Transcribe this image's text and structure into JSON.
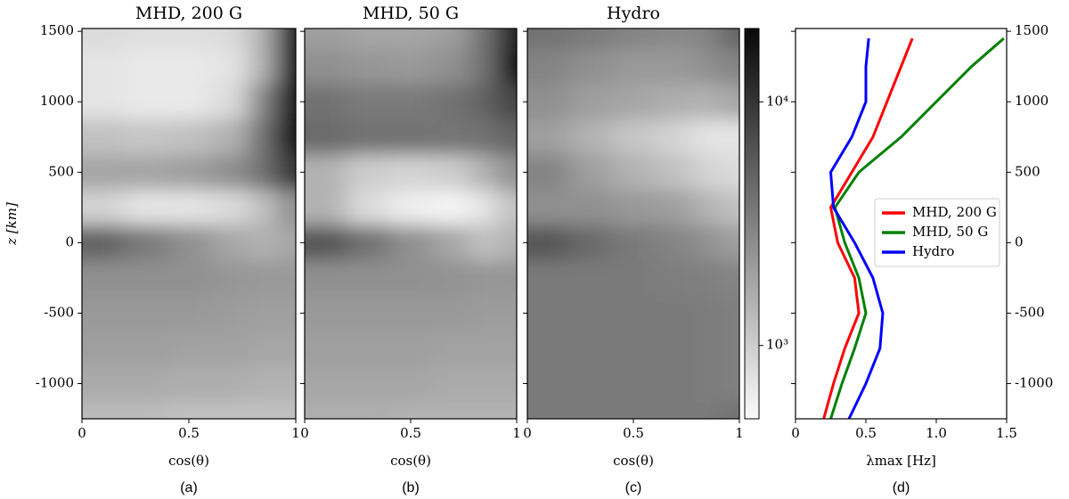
{
  "chart_data": [
    {
      "type": "heatmap",
      "title": "MHD,  200 G",
      "caption": "(a)",
      "xlabel": "cos(θ)",
      "ylabel": "z [km]",
      "xlim": [
        0,
        1
      ],
      "xticks": [
        0,
        0.5,
        1
      ],
      "ylim": [
        -1250,
        1520
      ],
      "yticks": [
        -1000,
        -500,
        0,
        500,
        1000,
        1500
      ],
      "x": [
        0.1,
        0.3,
        0.5,
        0.7,
        0.85,
        0.97
      ],
      "y": [
        1500,
        1250,
        1000,
        750,
        500,
        250,
        0,
        -250,
        -500,
        -750,
        -1000,
        -1250
      ],
      "values": [
        [
          800,
          750,
          750,
          800,
          1500,
          20000
        ],
        [
          700,
          650,
          650,
          700,
          1500,
          18000
        ],
        [
          700,
          650,
          650,
          800,
          3000,
          20000
        ],
        [
          1200,
          1100,
          1200,
          1500,
          4000,
          20000
        ],
        [
          1800,
          1800,
          2000,
          2500,
          4000,
          10000
        ],
        [
          900,
          700,
          700,
          800,
          1200,
          2500
        ],
        [
          5000,
          3500,
          2500,
          1800,
          1500,
          1800
        ],
        [
          2500,
          2500,
          2500,
          2300,
          2200,
          2200
        ],
        [
          2200,
          2200,
          2200,
          2100,
          2000,
          2000
        ],
        [
          2000,
          2000,
          1900,
          1900,
          1800,
          1800
        ],
        [
          1700,
          1700,
          1600,
          1600,
          1500,
          1500
        ],
        [
          1300,
          1300,
          1200,
          1200,
          1200,
          1200
        ]
      ]
    },
    {
      "type": "heatmap",
      "title": "MHD,  50 G",
      "caption": "(b)",
      "xlabel": "cos(θ)",
      "xlim": [
        0,
        1
      ],
      "xticks": [
        0,
        0.5,
        1
      ],
      "ylim": [
        -1250,
        1520
      ],
      "yticks": [
        -1000,
        -500,
        0,
        500,
        1000,
        1500
      ],
      "x": [
        0.1,
        0.3,
        0.5,
        0.7,
        0.85,
        0.97
      ],
      "y": [
        1500,
        1250,
        1000,
        750,
        500,
        250,
        0,
        -250,
        -500,
        -750,
        -1000,
        -1250
      ],
      "values": [
        [
          2000,
          1800,
          1800,
          2000,
          4000,
          15000
        ],
        [
          2500,
          2300,
          2200,
          2500,
          4000,
          18000
        ],
        [
          4000,
          3500,
          3500,
          4000,
          5000,
          8000
        ],
        [
          4500,
          4000,
          4000,
          3800,
          4000,
          5000
        ],
        [
          1500,
          1000,
          900,
          1000,
          1500,
          2500
        ],
        [
          1500,
          800,
          600,
          550,
          700,
          1200
        ],
        [
          6000,
          4000,
          2500,
          1800,
          1200,
          1500
        ],
        [
          2500,
          2500,
          2500,
          2400,
          2300,
          2300
        ],
        [
          2200,
          2200,
          2200,
          2200,
          2100,
          2100
        ],
        [
          2000,
          2000,
          2000,
          1900,
          1900,
          1900
        ],
        [
          1800,
          1800,
          1800,
          1700,
          1700,
          1700
        ],
        [
          1600,
          1600,
          1500,
          1500,
          1500,
          1500
        ]
      ]
    },
    {
      "type": "heatmap",
      "title": "Hydro",
      "caption": "(c)",
      "xlabel": "cos(θ)",
      "xlim": [
        0,
        1
      ],
      "xticks": [
        0,
        0.5,
        1
      ],
      "ylim": [
        -1250,
        1520
      ],
      "yticks": [
        -1000,
        -500,
        0,
        500,
        1000,
        1500
      ],
      "x": [
        0.1,
        0.3,
        0.5,
        0.7,
        0.85,
        0.97
      ],
      "y": [
        1500,
        1250,
        1000,
        750,
        500,
        250,
        0,
        -250,
        -500,
        -750,
        -1000,
        -1250
      ],
      "values": [
        [
          4000,
          3500,
          3000,
          2800,
          3000,
          5000
        ],
        [
          3000,
          2500,
          2200,
          2200,
          2500,
          3000
        ],
        [
          2500,
          2000,
          1800,
          1600,
          1500,
          1800
        ],
        [
          2000,
          1500,
          1100,
          900,
          700,
          700
        ],
        [
          3000,
          2000,
          1500,
          1200,
          900,
          800
        ],
        [
          2500,
          2500,
          2200,
          2000,
          1500,
          1200
        ],
        [
          6000,
          4500,
          3500,
          3000,
          2500,
          2000
        ],
        [
          3500,
          3500,
          3500,
          3300,
          3200,
          3000
        ],
        [
          3500,
          3500,
          3500,
          3500,
          3400,
          3200
        ],
        [
          3500,
          3500,
          3500,
          3500,
          3400,
          3200
        ],
        [
          3500,
          3500,
          3500,
          3500,
          3400,
          3200
        ],
        [
          3500,
          3500,
          3500,
          3500,
          3400,
          4000
        ]
      ]
    },
    {
      "type": "colorbar",
      "clim": [
        500,
        20000
      ],
      "log_scale": true,
      "cticks": [
        {
          "value": 1000,
          "label": "10³"
        },
        {
          "value": 10000,
          "label": "10⁴"
        }
      ]
    },
    {
      "type": "line",
      "caption": "(d)",
      "xlabel": "λmax [Hz]",
      "y_axis_side": "right",
      "legend": "right",
      "xlim": [
        0,
        1.5
      ],
      "xticks": [
        0,
        0.5,
        {
          "value": 1.0,
          "label": "1.0"
        },
        1.5
      ],
      "ylim": [
        -1250,
        1520
      ],
      "yticks": [
        -1000,
        -500,
        0,
        500,
        1000,
        1500
      ],
      "y": [
        -1250,
        -1000,
        -750,
        -500,
        -250,
        0,
        250,
        500,
        750,
        1000,
        1250,
        1450
      ],
      "series": [
        {
          "name": "MHD,  200 G",
          "color": "#ff0000",
          "values": [
            0.2,
            0.27,
            0.35,
            0.45,
            0.42,
            0.3,
            0.25,
            0.4,
            0.55,
            0.65,
            0.75,
            0.83
          ]
        },
        {
          "name": "MHD,  50 G",
          "color": "#008000",
          "values": [
            0.25,
            0.33,
            0.42,
            0.5,
            0.45,
            0.35,
            0.28,
            0.45,
            0.75,
            1.0,
            1.25,
            1.48
          ]
        },
        {
          "name": "Hydro",
          "color": "#0000ff",
          "values": [
            0.38,
            0.5,
            0.6,
            0.62,
            0.55,
            0.42,
            0.27,
            0.25,
            0.4,
            0.5,
            0.5,
            0.52
          ]
        }
      ]
    }
  ]
}
